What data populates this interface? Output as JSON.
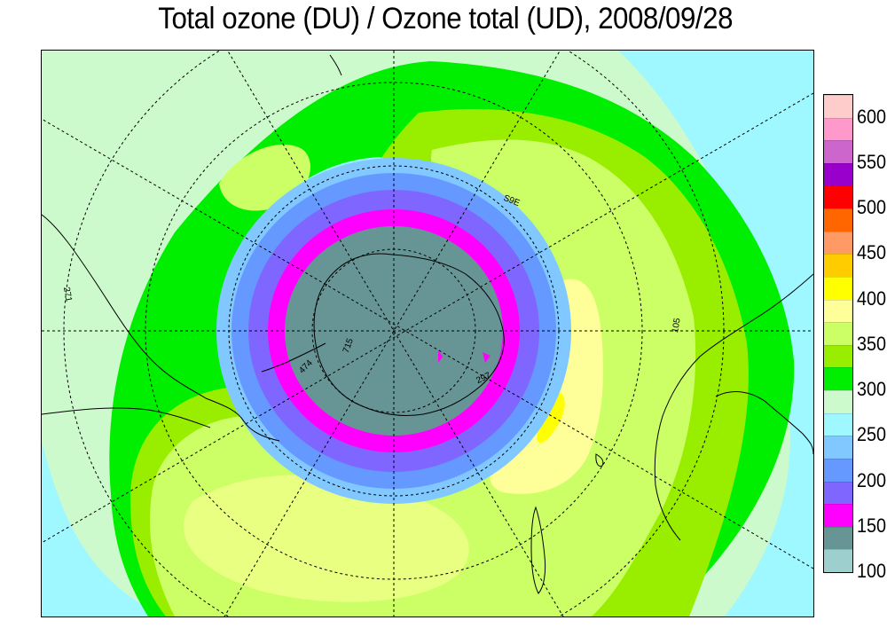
{
  "title": "Total ozone (DU) / Ozone total (UD), 2008/09/28",
  "legend": {
    "tick_labels": [
      "100",
      "150",
      "200",
      "250",
      "300",
      "350",
      "400",
      "450",
      "500",
      "550",
      "600"
    ],
    "bins": [
      {
        "min": 100,
        "max": 125,
        "color": "#9dcfcf"
      },
      {
        "min": 125,
        "max": 150,
        "color": "#679595"
      },
      {
        "min": 150,
        "max": 175,
        "color": "#ff00ff"
      },
      {
        "min": 175,
        "max": 200,
        "color": "#7f66ff"
      },
      {
        "min": 200,
        "max": 225,
        "color": "#6699ff"
      },
      {
        "min": 225,
        "max": 250,
        "color": "#80c8ff"
      },
      {
        "min": 250,
        "max": 275,
        "color": "#9ff7ff"
      },
      {
        "min": 275,
        "max": 300,
        "color": "#ccfacc"
      },
      {
        "min": 300,
        "max": 325,
        "color": "#00ee00"
      },
      {
        "min": 325,
        "max": 350,
        "color": "#99ee00"
      },
      {
        "min": 350,
        "max": 375,
        "color": "#ccff66"
      },
      {
        "min": 375,
        "max": 400,
        "color": "#ffff99"
      },
      {
        "min": 400,
        "max": 425,
        "color": "#ffff00"
      },
      {
        "min": 425,
        "max": 450,
        "color": "#ffcc00"
      },
      {
        "min": 450,
        "max": 475,
        "color": "#ff9966"
      },
      {
        "min": 475,
        "max": 500,
        "color": "#ff6600"
      },
      {
        "min": 500,
        "max": 525,
        "color": "#ff0000"
      },
      {
        "min": 525,
        "max": 550,
        "color": "#9900cc"
      },
      {
        "min": 550,
        "max": 575,
        "color": "#cc66cc"
      },
      {
        "min": 575,
        "max": 600,
        "color": "#ff99cc"
      },
      {
        "min": 600,
        "max": 625,
        "color": "#ffcccc"
      }
    ]
  },
  "station_labels": [
    "S9E",
    "271",
    "105",
    "474",
    "297",
    "715"
  ]
}
